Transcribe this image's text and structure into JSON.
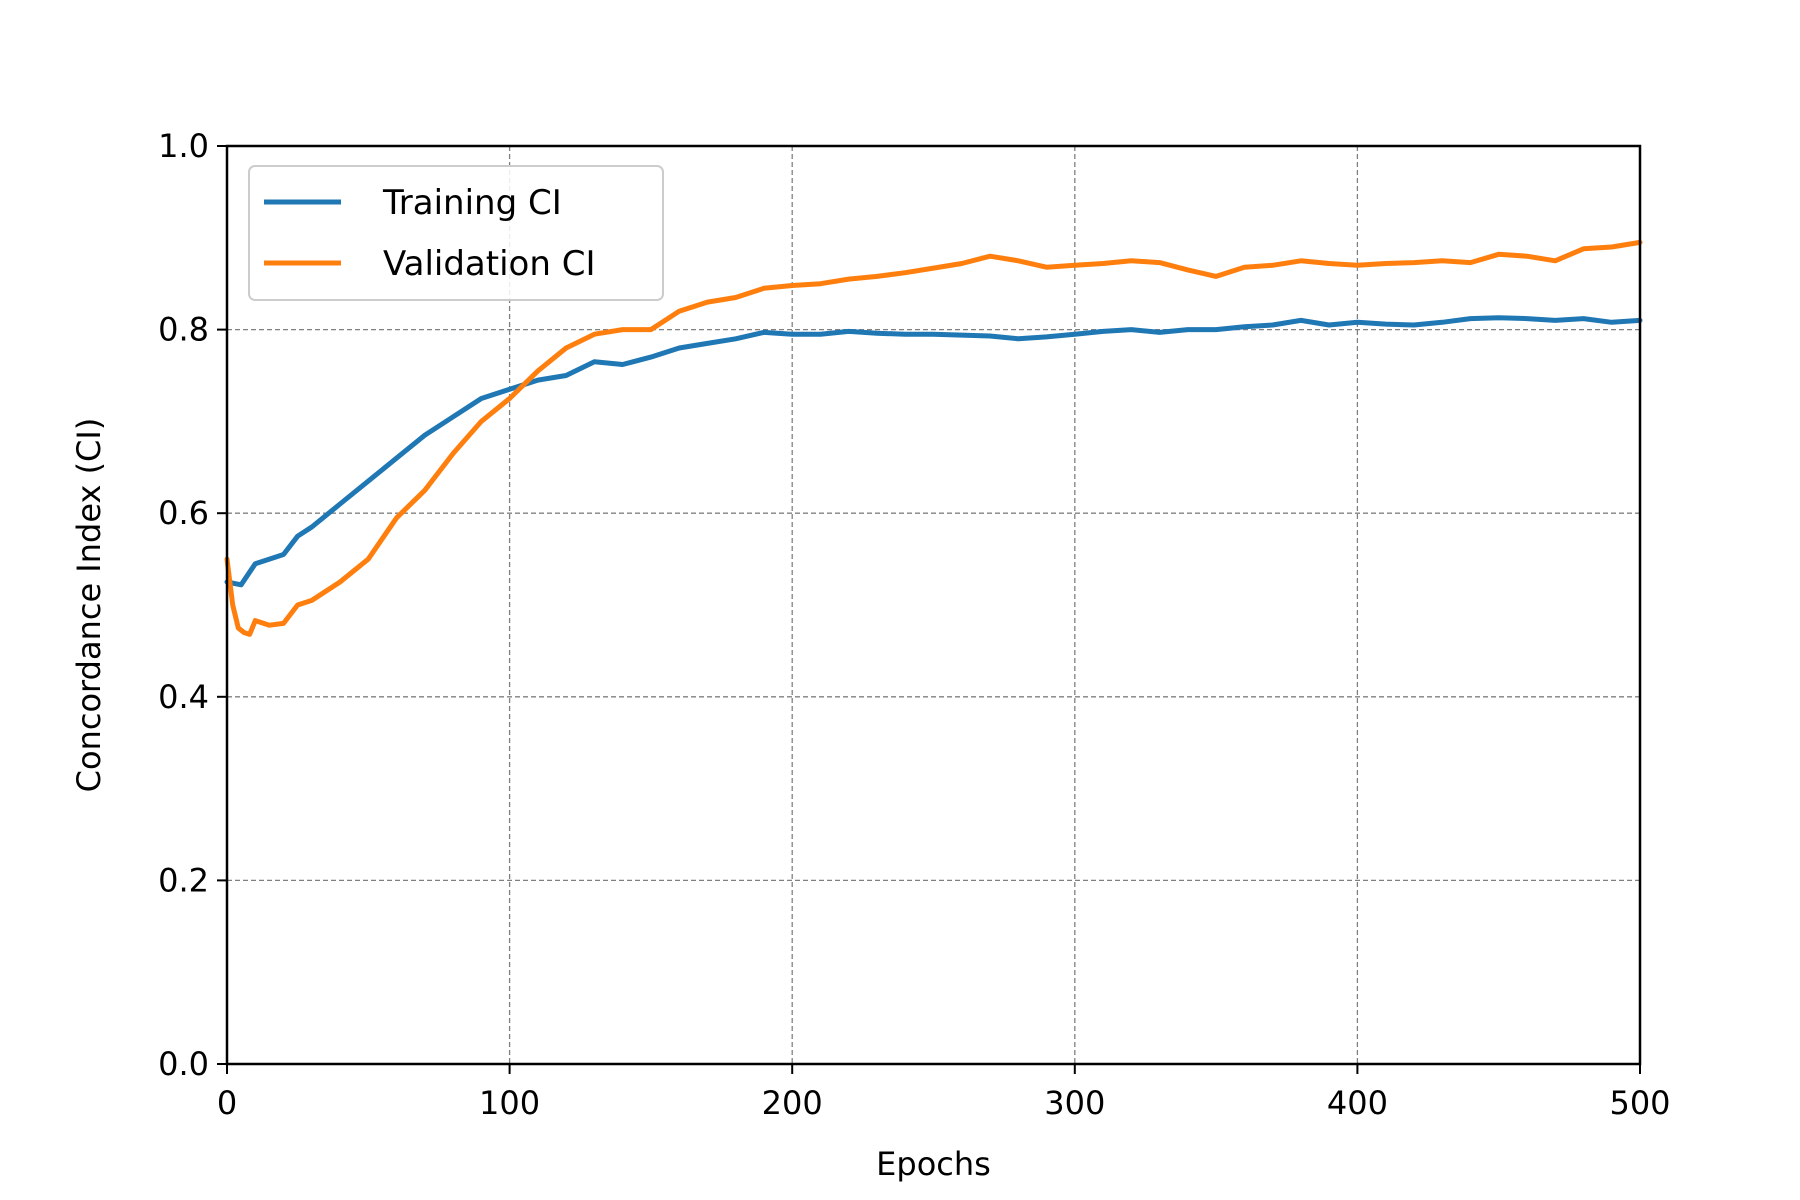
{
  "chart_data": {
    "type": "line",
    "title": "",
    "xlabel": "Epochs",
    "ylabel": "Concordance Index (CI)",
    "xlim": [
      0,
      500
    ],
    "ylim": [
      0.0,
      1.0
    ],
    "xticks": [
      "0",
      "100",
      "200",
      "300",
      "400",
      "500"
    ],
    "yticks": [
      "0.0",
      "0.2",
      "0.4",
      "0.6",
      "0.8",
      "1.0"
    ],
    "grid": true,
    "legend_position": "upper-left",
    "series": [
      {
        "name": "Training CI",
        "color": "#1f77b4",
        "x": [
          0,
          5,
          10,
          15,
          20,
          25,
          30,
          40,
          50,
          60,
          70,
          80,
          90,
          100,
          110,
          120,
          130,
          140,
          150,
          160,
          170,
          180,
          190,
          200,
          210,
          220,
          230,
          240,
          250,
          260,
          270,
          280,
          290,
          300,
          310,
          320,
          330,
          340,
          350,
          360,
          370,
          380,
          390,
          400,
          410,
          420,
          430,
          440,
          450,
          460,
          470,
          480,
          490,
          500
        ],
        "values": [
          0.525,
          0.522,
          0.545,
          0.55,
          0.555,
          0.575,
          0.585,
          0.61,
          0.635,
          0.66,
          0.685,
          0.705,
          0.725,
          0.735,
          0.745,
          0.75,
          0.765,
          0.762,
          0.77,
          0.78,
          0.785,
          0.79,
          0.797,
          0.795,
          0.795,
          0.798,
          0.796,
          0.795,
          0.795,
          0.794,
          0.793,
          0.79,
          0.792,
          0.795,
          0.798,
          0.8,
          0.797,
          0.8,
          0.8,
          0.803,
          0.805,
          0.81,
          0.805,
          0.808,
          0.806,
          0.805,
          0.808,
          0.812,
          0.813,
          0.812,
          0.81,
          0.812,
          0.808,
          0.81
        ]
      },
      {
        "name": "Validation CI",
        "color": "#ff7f0e",
        "x": [
          0,
          2,
          4,
          6,
          8,
          10,
          15,
          20,
          25,
          30,
          40,
          50,
          60,
          70,
          80,
          90,
          100,
          110,
          120,
          130,
          140,
          150,
          160,
          170,
          180,
          190,
          200,
          210,
          220,
          230,
          240,
          250,
          260,
          270,
          280,
          290,
          300,
          310,
          320,
          330,
          340,
          350,
          360,
          370,
          380,
          390,
          400,
          410,
          420,
          430,
          440,
          450,
          460,
          470,
          480,
          490,
          500
        ],
        "values": [
          0.55,
          0.5,
          0.475,
          0.47,
          0.468,
          0.483,
          0.478,
          0.48,
          0.5,
          0.505,
          0.525,
          0.55,
          0.595,
          0.625,
          0.665,
          0.7,
          0.725,
          0.755,
          0.78,
          0.795,
          0.8,
          0.8,
          0.82,
          0.83,
          0.835,
          0.845,
          0.848,
          0.85,
          0.855,
          0.858,
          0.862,
          0.867,
          0.872,
          0.88,
          0.875,
          0.868,
          0.87,
          0.872,
          0.875,
          0.873,
          0.865,
          0.858,
          0.868,
          0.87,
          0.875,
          0.872,
          0.87,
          0.872,
          0.873,
          0.875,
          0.873,
          0.882,
          0.88,
          0.875,
          0.888,
          0.89,
          0.895
        ]
      }
    ]
  }
}
